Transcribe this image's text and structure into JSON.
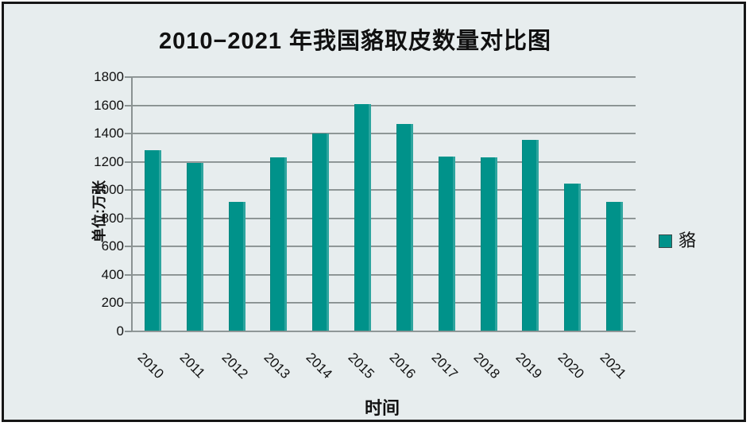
{
  "title": "2010−2021 年我国貉取皮数量对比图",
  "axes": {
    "y_title": "单位:万张",
    "x_title": "时间"
  },
  "legend": {
    "items": [
      {
        "label": "貉",
        "color": "#00928a"
      }
    ]
  },
  "colors": {
    "background": "#e7edee",
    "bar": "#00928a",
    "gridline": "#8a9292",
    "frame_border": "#161616",
    "text": "#111111"
  },
  "chart_data": {
    "type": "bar",
    "title": "2010−2021 年我国貉取皮数量对比图",
    "categories": [
      "2010",
      "2011",
      "2012",
      "2013",
      "2014",
      "2015",
      "2016",
      "2017",
      "2018",
      "2019",
      "2020",
      "2021"
    ],
    "series": [
      {
        "name": "貉",
        "color": "#00928a",
        "values": [
          1285,
          1195,
          915,
          1230,
          1400,
          1608,
          1470,
          1240,
          1230,
          1355,
          1045,
          915
        ]
      }
    ],
    "xlabel": "时间",
    "ylabel": "单位:万张",
    "ylim": [
      0,
      1800
    ],
    "ytick_step": 200,
    "grid": true,
    "legend_position": "right"
  }
}
